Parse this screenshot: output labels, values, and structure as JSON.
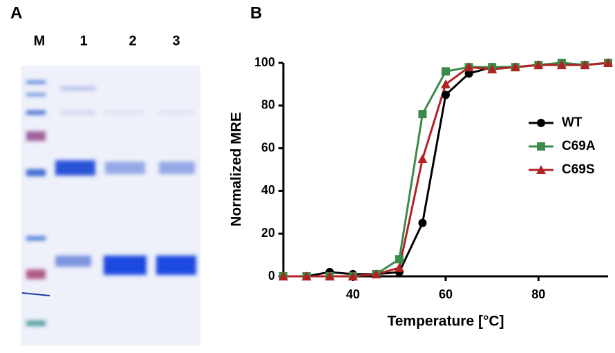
{
  "panel_labels": [
    "A",
    "B"
  ],
  "gel": {
    "lanes": [
      "M",
      "1",
      "2",
      "3"
    ]
  },
  "chart_data": {
    "type": "line",
    "x_label": "Temperature [°C]",
    "y_label": "Normalized MRE",
    "x": [
      25,
      30,
      35,
      40,
      45,
      50,
      55,
      60,
      65,
      70,
      75,
      80,
      85,
      90,
      95
    ],
    "series": [
      {
        "name": "WT",
        "color": "#000000",
        "marker": "circle",
        "values": [
          0,
          0,
          2,
          1,
          1,
          2,
          25,
          85,
          95,
          98,
          98,
          99,
          100,
          99,
          100
        ]
      },
      {
        "name": "C69A",
        "color": "#3a8a4a",
        "marker": "square",
        "values": [
          0,
          0,
          0,
          0,
          1,
          8,
          76,
          96,
          98,
          98,
          98,
          99,
          100,
          99,
          100
        ]
      },
      {
        "name": "C69S",
        "color": "#b22222",
        "marker": "triangle",
        "values": [
          0,
          0,
          0,
          0,
          1,
          4,
          55,
          90,
          98,
          97,
          98,
          99,
          99,
          99,
          100
        ]
      }
    ],
    "xlim": [
      25,
      95
    ],
    "xticks": [
      40,
      60,
      80
    ],
    "ylim": [
      0,
      100
    ],
    "yticks": [
      0,
      20,
      40,
      60,
      80,
      100
    ],
    "legend": "right"
  }
}
